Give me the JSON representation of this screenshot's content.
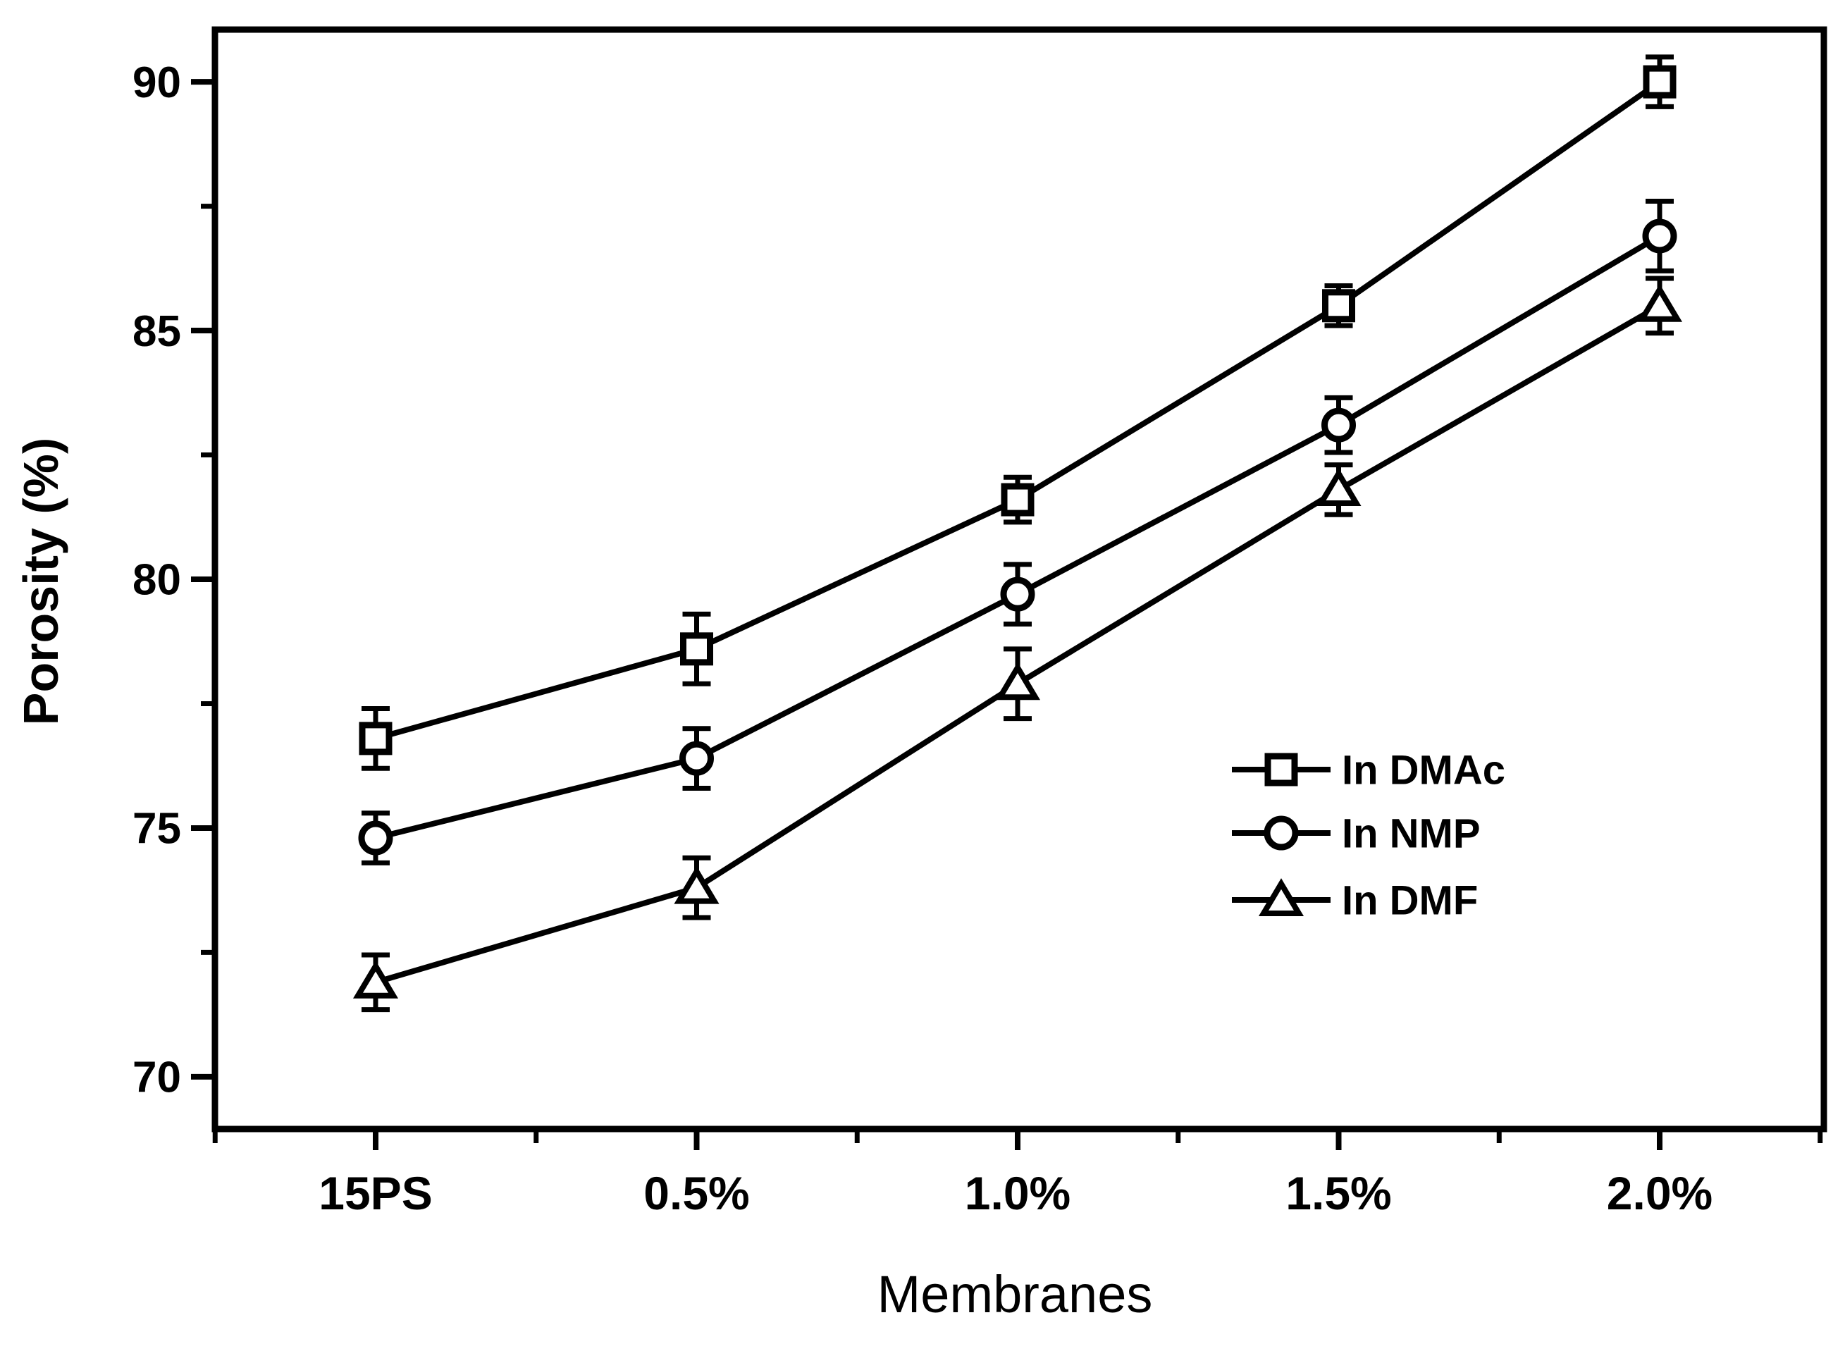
{
  "page": {
    "background": "#ffffff",
    "ink": "#000000"
  },
  "chart_data": {
    "type": "line",
    "title": "",
    "xlabel": "Membranes",
    "ylabel": "Porosity (%)",
    "categories": [
      "15PS",
      "0.5%",
      "1.0%",
      "1.5%",
      "2.0%"
    ],
    "ylim": [
      68.95,
      91.05
    ],
    "y_major_ticks": [
      70,
      75,
      80,
      85,
      90
    ],
    "y_minor_ticks": [
      72.5,
      77.5,
      82.5,
      87.5
    ],
    "grid": false,
    "legend_position": "inside-right",
    "series": [
      {
        "name": "In DMAc",
        "marker": "square",
        "values": [
          76.8,
          78.6,
          81.6,
          85.5,
          90.0
        ],
        "errors": [
          0.6,
          0.7,
          0.45,
          0.4,
          0.5
        ]
      },
      {
        "name": "In NMP",
        "marker": "circle",
        "values": [
          74.8,
          76.4,
          79.7,
          83.1,
          86.9
        ],
        "errors": [
          0.5,
          0.6,
          0.6,
          0.55,
          0.7
        ]
      },
      {
        "name": "In DMF",
        "marker": "triangle",
        "values": [
          71.9,
          73.8,
          77.9,
          81.8,
          85.5
        ],
        "errors": [
          0.55,
          0.6,
          0.7,
          0.5,
          0.55
        ]
      }
    ]
  }
}
